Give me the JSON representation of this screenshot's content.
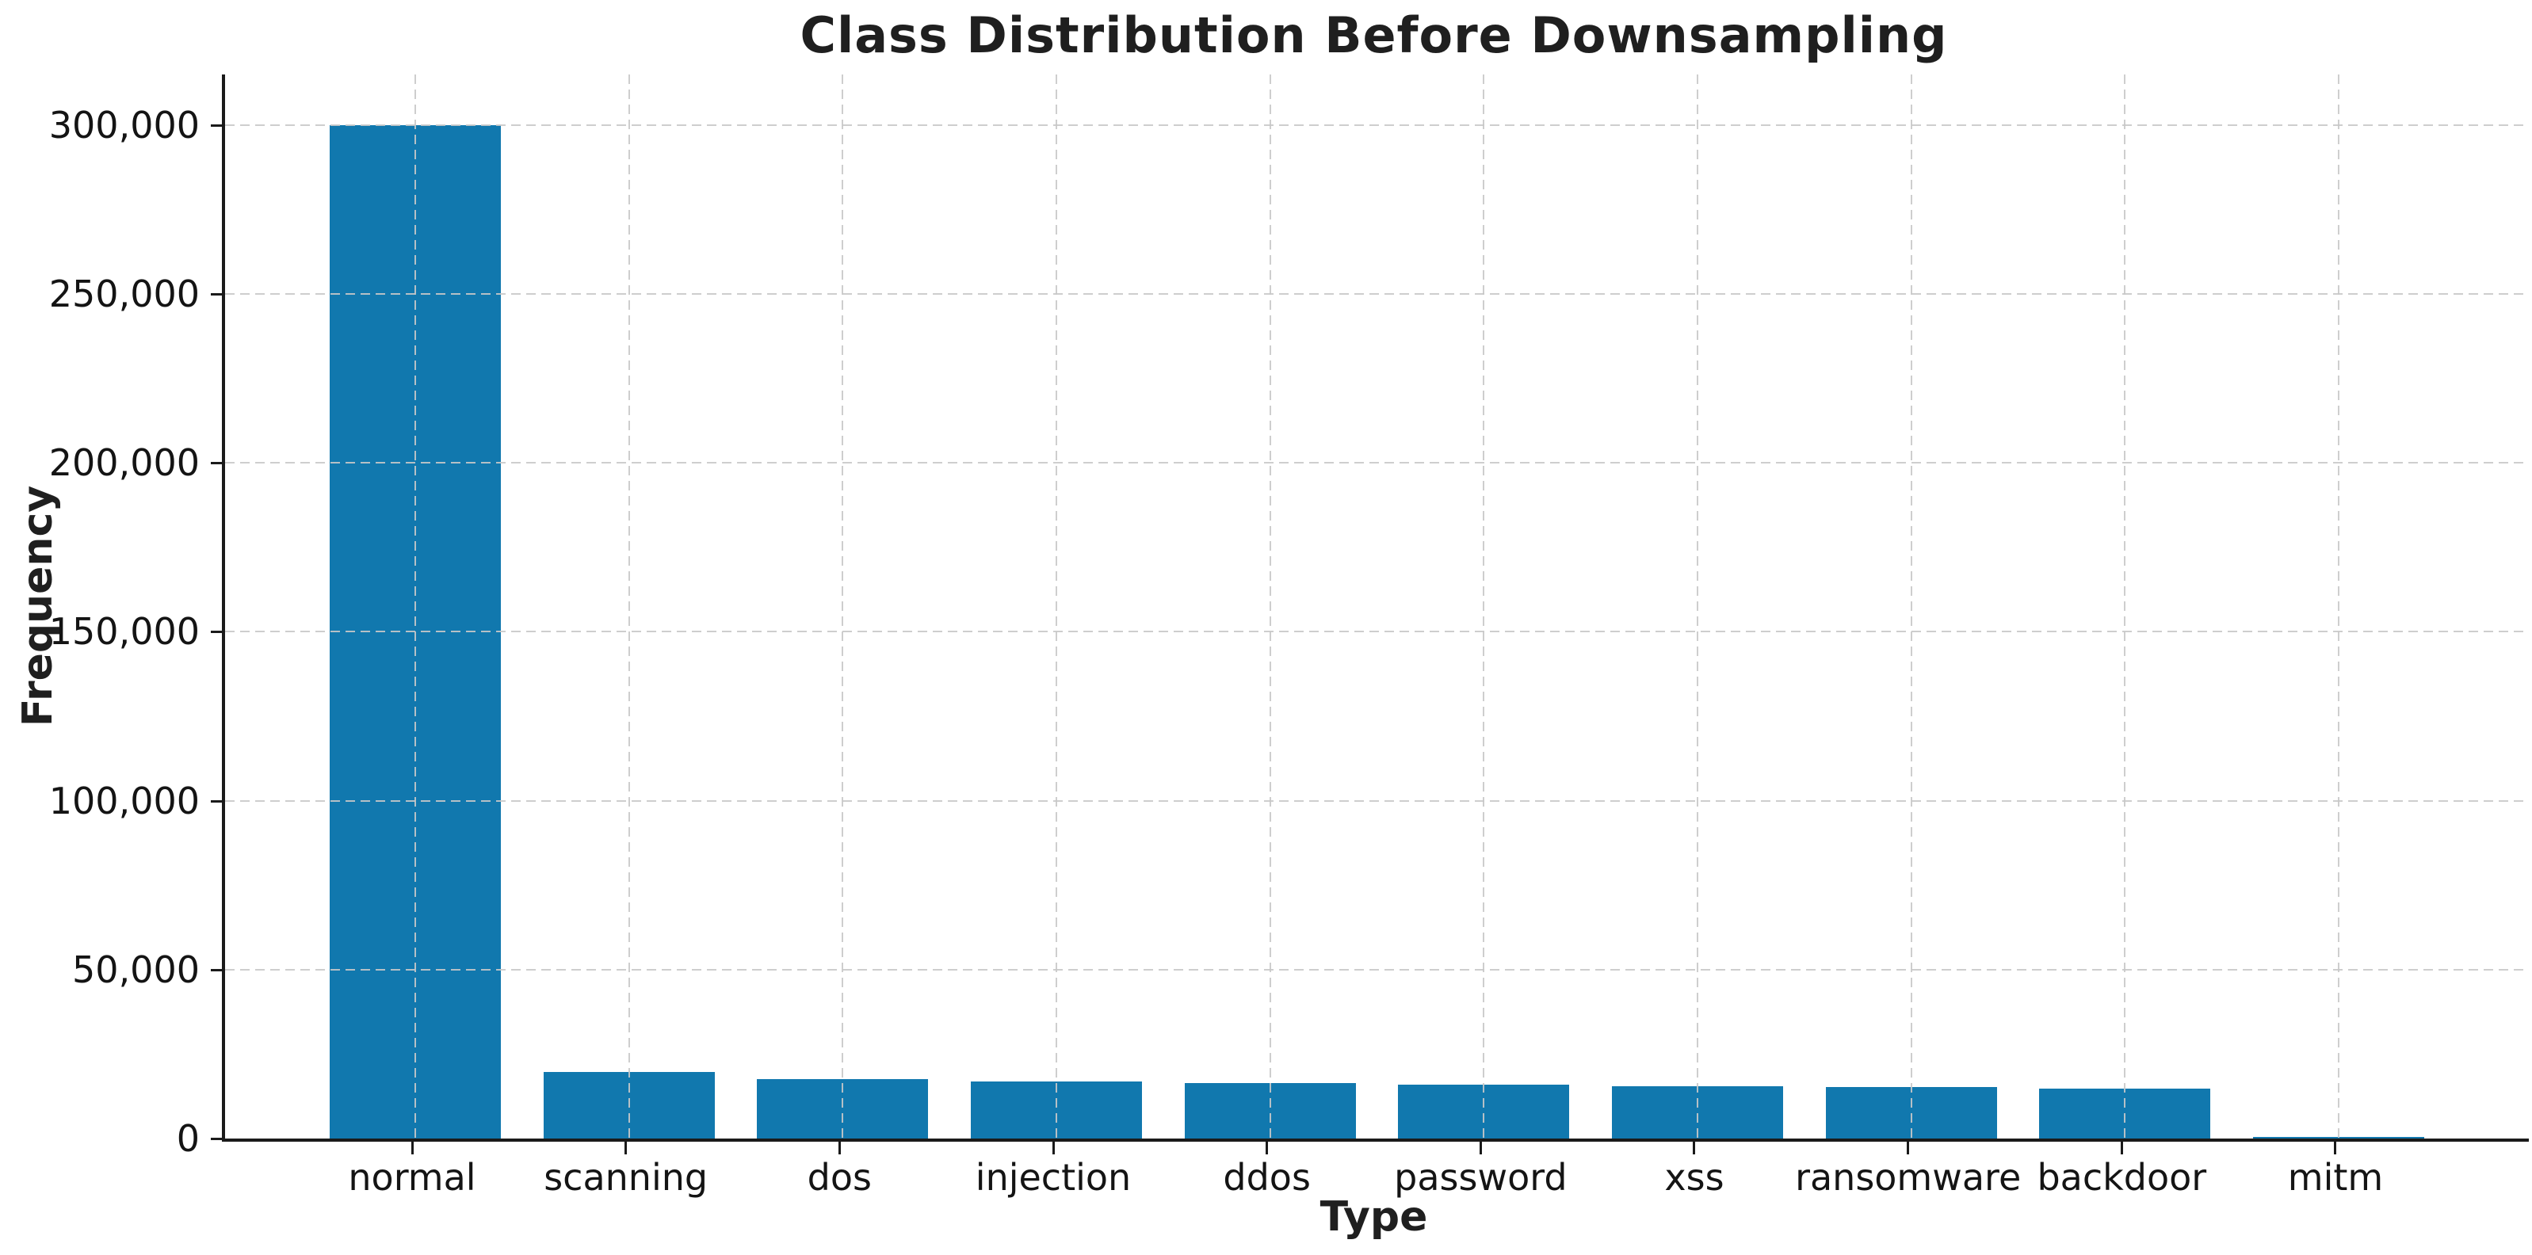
{
  "chart_data": {
    "type": "bar",
    "title": "Class Distribution Before Downsampling",
    "xlabel": "Type",
    "ylabel": "Frequency",
    "categories": [
      "normal",
      "scanning",
      "dos",
      "injection",
      "ddos",
      "password",
      "xss",
      "ransomware",
      "backdoor",
      "mitm"
    ],
    "values": [
      300000,
      19600,
      17700,
      17000,
      16500,
      15900,
      15400,
      15200,
      14800,
      500
    ],
    "ylim": [
      0,
      315000
    ],
    "xlim": [
      -0.89,
      9.89
    ],
    "bar_width_units": 0.8,
    "yticks": [
      {
        "value": 0,
        "label": "0"
      },
      {
        "value": 50000,
        "label": "50,000"
      },
      {
        "value": 100000,
        "label": "100,000"
      },
      {
        "value": 150000,
        "label": "150,000"
      },
      {
        "value": 200000,
        "label": "200,000"
      },
      {
        "value": 250000,
        "label": "250,000"
      },
      {
        "value": 300000,
        "label": "300,000"
      }
    ],
    "grid": {
      "visible": true,
      "style": "dashed",
      "axes": "both"
    },
    "legend": "none",
    "colors": {
      "bar": "#1178ae",
      "grid": "#c8c8c8",
      "axis": "#1a1a1a"
    }
  }
}
